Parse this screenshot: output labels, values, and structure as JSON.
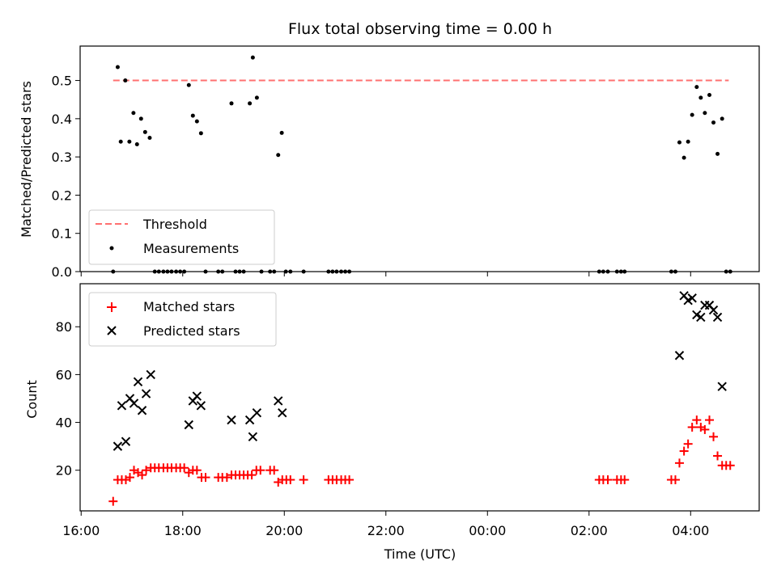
{
  "chart_data": [
    {
      "type": "scatter",
      "title": "Flux total observing time = 0.00 h",
      "xlabel": "",
      "ylabel": "Matched/Predicted stars",
      "ylim": [
        0,
        0.59
      ],
      "y_ticks": [
        0.0,
        0.1,
        0.2,
        0.3,
        0.4,
        0.5
      ],
      "y_tick_labels": [
        "0.0",
        "0.1",
        "0.2",
        "0.3",
        "0.4",
        "0.5"
      ],
      "x_range_hours": [
        15.98,
        29.35
      ],
      "legend": {
        "position": "lower-left",
        "entries": [
          "Threshold",
          "Measurements"
        ]
      },
      "threshold": {
        "name": "Threshold",
        "value": 0.5,
        "x": [
          16.63,
          28.75
        ],
        "color": "#ff7070",
        "style": "dashed"
      },
      "series": [
        {
          "name": "Measurements",
          "color": "#000000",
          "marker": "dot",
          "points": [
            [
              16.63,
              0.0
            ],
            [
              16.72,
              0.535
            ],
            [
              16.78,
              0.34
            ],
            [
              16.87,
              0.5
            ],
            [
              16.95,
              0.34
            ],
            [
              17.03,
              0.415
            ],
            [
              17.1,
              0.333
            ],
            [
              17.18,
              0.4
            ],
            [
              17.26,
              0.365
            ],
            [
              17.35,
              0.35
            ],
            [
              17.45,
              0.0
            ],
            [
              17.53,
              0.0
            ],
            [
              17.62,
              0.0
            ],
            [
              17.7,
              0.0
            ],
            [
              17.78,
              0.0
            ],
            [
              17.87,
              0.0
            ],
            [
              17.95,
              0.0
            ],
            [
              18.03,
              0.0
            ],
            [
              18.12,
              0.488
            ],
            [
              18.2,
              0.408
            ],
            [
              18.28,
              0.393
            ],
            [
              18.36,
              0.362
            ],
            [
              18.45,
              0.0
            ],
            [
              18.7,
              0.0
            ],
            [
              18.78,
              0.0
            ],
            [
              18.96,
              0.44
            ],
            [
              19.04,
              0.0
            ],
            [
              19.12,
              0.0
            ],
            [
              19.2,
              0.0
            ],
            [
              19.32,
              0.44
            ],
            [
              19.38,
              0.56
            ],
            [
              19.46,
              0.455
            ],
            [
              19.55,
              0.0
            ],
            [
              19.72,
              0.0
            ],
            [
              19.8,
              0.0
            ],
            [
              19.88,
              0.305
            ],
            [
              19.95,
              0.363
            ],
            [
              20.03,
              0.0
            ],
            [
              20.12,
              0.0
            ],
            [
              20.38,
              0.0
            ],
            [
              20.87,
              0.0
            ],
            [
              20.95,
              0.0
            ],
            [
              21.03,
              0.0
            ],
            [
              21.12,
              0.0
            ],
            [
              21.2,
              0.0
            ],
            [
              21.28,
              0.0
            ],
            [
              26.2,
              0.0
            ],
            [
              26.28,
              0.0
            ],
            [
              26.37,
              0.0
            ],
            [
              26.55,
              0.0
            ],
            [
              26.63,
              0.0
            ],
            [
              26.7,
              0.0
            ],
            [
              27.62,
              0.0
            ],
            [
              27.7,
              0.0
            ],
            [
              27.78,
              0.338
            ],
            [
              27.87,
              0.298
            ],
            [
              27.95,
              0.34
            ],
            [
              28.03,
              0.41
            ],
            [
              28.12,
              0.483
            ],
            [
              28.2,
              0.455
            ],
            [
              28.28,
              0.415
            ],
            [
              28.37,
              0.462
            ],
            [
              28.45,
              0.39
            ],
            [
              28.53,
              0.308
            ],
            [
              28.62,
              0.4
            ],
            [
              28.7,
              0.0
            ],
            [
              28.78,
              0.0
            ]
          ]
        }
      ]
    },
    {
      "type": "scatter",
      "title": "",
      "xlabel": "Time (UTC)",
      "ylabel": "Count",
      "ylim": [
        3,
        98
      ],
      "y_ticks": [
        20,
        40,
        60,
        80
      ],
      "y_tick_labels": [
        "20",
        "40",
        "60",
        "80"
      ],
      "x_range_hours": [
        15.98,
        29.35
      ],
      "x_ticks": [
        16,
        18,
        20,
        22,
        24,
        26,
        28
      ],
      "x_tick_labels": [
        "16:00",
        "18:00",
        "20:00",
        "22:00",
        "00:00",
        "02:00",
        "04:00"
      ],
      "legend": {
        "position": "top-left",
        "entries": [
          "Matched stars",
          "Predicted stars"
        ]
      },
      "series": [
        {
          "name": "Matched stars",
          "color": "#ff0000",
          "marker": "plus",
          "points": [
            [
              16.63,
              7
            ],
            [
              16.72,
              16
            ],
            [
              16.8,
              16
            ],
            [
              16.88,
              16
            ],
            [
              16.96,
              17
            ],
            [
              17.04,
              20
            ],
            [
              17.12,
              19
            ],
            [
              17.2,
              18
            ],
            [
              17.28,
              20
            ],
            [
              17.37,
              21
            ],
            [
              17.45,
              21
            ],
            [
              17.53,
              21
            ],
            [
              17.62,
              21
            ],
            [
              17.7,
              21
            ],
            [
              17.78,
              21
            ],
            [
              17.87,
              21
            ],
            [
              17.95,
              21
            ],
            [
              18.03,
              21
            ],
            [
              18.12,
              19
            ],
            [
              18.2,
              20
            ],
            [
              18.28,
              20
            ],
            [
              18.37,
              17
            ],
            [
              18.45,
              17
            ],
            [
              18.7,
              17
            ],
            [
              18.78,
              17
            ],
            [
              18.87,
              17
            ],
            [
              18.96,
              18
            ],
            [
              19.04,
              18
            ],
            [
              19.12,
              18
            ],
            [
              19.2,
              18
            ],
            [
              19.28,
              18
            ],
            [
              19.36,
              18
            ],
            [
              19.45,
              20
            ],
            [
              19.53,
              20
            ],
            [
              19.72,
              20
            ],
            [
              19.8,
              20
            ],
            [
              19.88,
              15
            ],
            [
              19.96,
              16
            ],
            [
              20.04,
              16
            ],
            [
              20.12,
              16
            ],
            [
              20.38,
              16
            ],
            [
              20.87,
              16
            ],
            [
              20.95,
              16
            ],
            [
              21.03,
              16
            ],
            [
              21.12,
              16
            ],
            [
              21.2,
              16
            ],
            [
              21.28,
              16
            ],
            [
              26.2,
              16
            ],
            [
              26.28,
              16
            ],
            [
              26.37,
              16
            ],
            [
              26.55,
              16
            ],
            [
              26.63,
              16
            ],
            [
              26.7,
              16
            ],
            [
              27.62,
              16
            ],
            [
              27.7,
              16
            ],
            [
              27.78,
              23
            ],
            [
              27.87,
              28
            ],
            [
              27.95,
              31
            ],
            [
              28.03,
              38
            ],
            [
              28.12,
              41
            ],
            [
              28.2,
              38
            ],
            [
              28.28,
              37
            ],
            [
              28.37,
              41
            ],
            [
              28.45,
              34
            ],
            [
              28.53,
              26
            ],
            [
              28.62,
              22
            ],
            [
              28.7,
              22
            ],
            [
              28.78,
              22
            ]
          ]
        },
        {
          "name": "Predicted stars",
          "color": "#000000",
          "marker": "x",
          "points": [
            [
              16.72,
              30
            ],
            [
              16.8,
              47
            ],
            [
              16.88,
              32
            ],
            [
              16.96,
              50
            ],
            [
              17.04,
              48
            ],
            [
              17.12,
              57
            ],
            [
              17.2,
              45
            ],
            [
              17.28,
              52
            ],
            [
              17.37,
              60
            ],
            [
              18.12,
              39
            ],
            [
              18.2,
              49
            ],
            [
              18.28,
              51
            ],
            [
              18.36,
              47
            ],
            [
              18.96,
              41
            ],
            [
              19.32,
              41
            ],
            [
              19.38,
              34
            ],
            [
              19.46,
              44
            ],
            [
              19.88,
              49
            ],
            [
              19.96,
              44
            ],
            [
              27.78,
              68
            ],
            [
              27.87,
              93
            ],
            [
              27.95,
              91
            ],
            [
              28.03,
              92
            ],
            [
              28.12,
              85
            ],
            [
              28.2,
              84
            ],
            [
              28.28,
              89
            ],
            [
              28.37,
              89
            ],
            [
              28.45,
              87
            ],
            [
              28.53,
              84
            ],
            [
              28.62,
              55
            ]
          ]
        }
      ]
    }
  ]
}
